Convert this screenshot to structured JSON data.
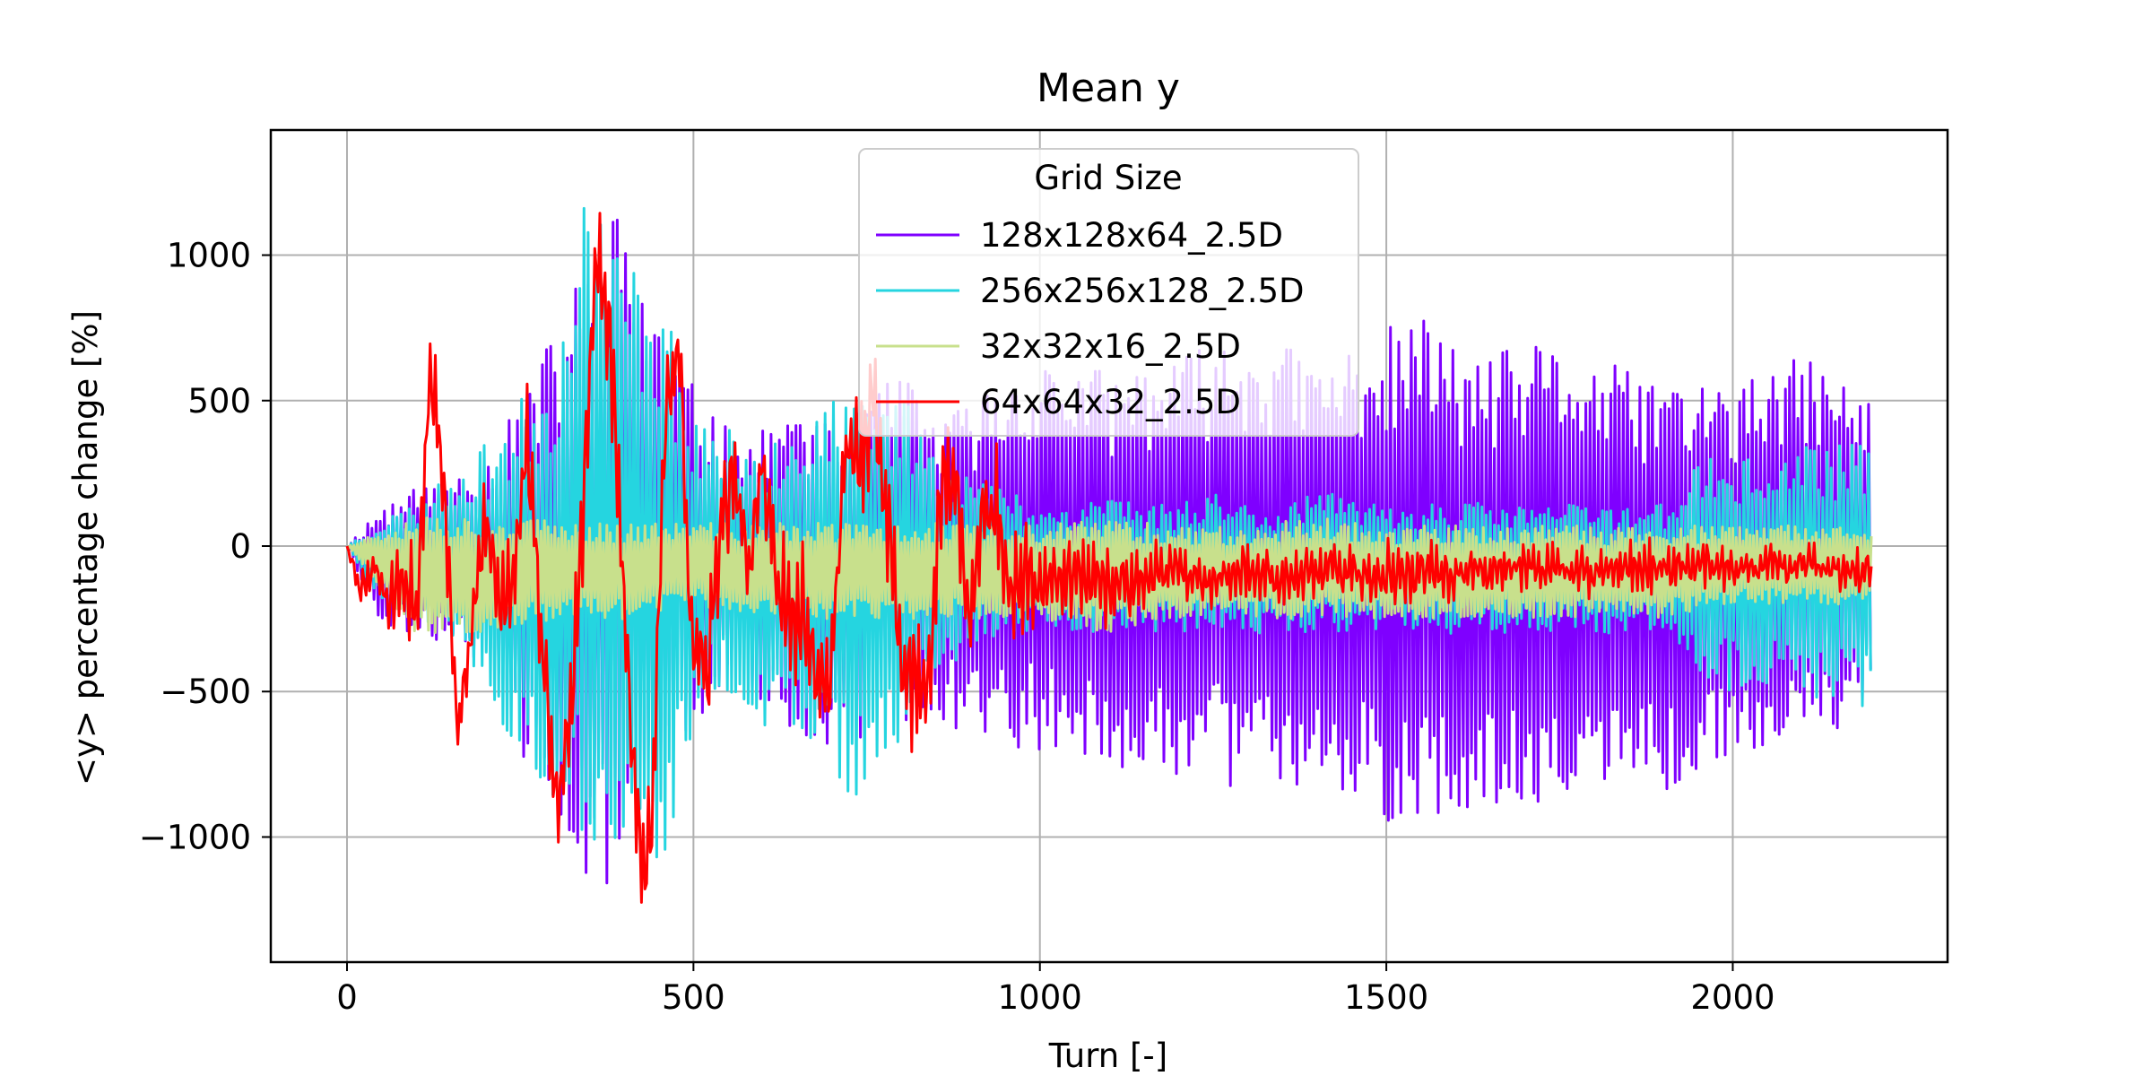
{
  "chart_data": {
    "type": "line",
    "title": "Mean y",
    "xlabel": "Turn [-]",
    "ylabel": "<y> percentage change [%]",
    "xlim": [
      -110,
      2310
    ],
    "ylim": [
      -1430,
      1430
    ],
    "xticks": [
      0,
      500,
      1000,
      1500,
      2000
    ],
    "yticks": [
      -1000,
      -500,
      0,
      500,
      1000
    ],
    "xtick_labels": [
      "0",
      "500",
      "1000",
      "1500",
      "2000"
    ],
    "ytick_labels": [
      "−1000",
      "−500",
      "0",
      "500",
      "1000"
    ],
    "grid": true,
    "legend": {
      "title": "Grid Size",
      "location": "upper center"
    },
    "x_range": [
      0,
      2200
    ],
    "series": [
      {
        "name": "128x128x64_2.5D",
        "color": "#7f00ff",
        "x": [
          0,
          50,
          100,
          150,
          200,
          250,
          300,
          350,
          400,
          450,
          500,
          550,
          600,
          650,
          700,
          750,
          800,
          850,
          900,
          950,
          1000,
          1050,
          1100,
          1150,
          1200,
          1250,
          1300,
          1350,
          1400,
          1450,
          1500,
          1550,
          1600,
          1650,
          1700,
          1750,
          1800,
          1850,
          1900,
          1950,
          2000,
          2050,
          2100,
          2150,
          2200
        ],
        "y_max": [
          0,
          150,
          200,
          250,
          300,
          500,
          750,
          1050,
          1200,
          800,
          550,
          400,
          400,
          500,
          400,
          500,
          600,
          450,
          500,
          600,
          650,
          650,
          600,
          650,
          650,
          700,
          750,
          700,
          650,
          700,
          750,
          800,
          700,
          650,
          700,
          700,
          650,
          600,
          600,
          600,
          550,
          600,
          650,
          600,
          500
        ],
        "y_min": [
          0,
          -300,
          -300,
          -350,
          -400,
          -700,
          -1000,
          -1300,
          -1100,
          -800,
          -600,
          -500,
          -600,
          -650,
          -700,
          -650,
          -600,
          -600,
          -650,
          -700,
          -700,
          -750,
          -750,
          -800,
          -800,
          -800,
          -850,
          -850,
          -850,
          -850,
          -950,
          -950,
          -900,
          -900,
          -900,
          -850,
          -850,
          -850,
          -850,
          -800,
          -750,
          -700,
          -700,
          -650,
          -550
        ]
      },
      {
        "name": "256x256x128_2.5D",
        "color": "#25d5e0",
        "x": [
          0,
          50,
          100,
          150,
          200,
          250,
          300,
          350,
          400,
          450,
          500,
          550,
          600,
          650,
          700,
          750,
          800,
          850,
          900,
          950,
          1000,
          1050,
          1100,
          1150,
          1200,
          1250,
          1300,
          1350,
          1400,
          1450,
          1500,
          1550,
          1600,
          1650,
          1700,
          1750,
          1800,
          1850,
          1900,
          1950,
          2000,
          2050,
          2100,
          2150,
          2200
        ],
        "y_max": [
          0,
          100,
          150,
          250,
          350,
          500,
          650,
          1300,
          1000,
          950,
          450,
          400,
          400,
          450,
          500,
          500,
          550,
          350,
          250,
          200,
          150,
          150,
          200,
          150,
          150,
          200,
          150,
          150,
          200,
          150,
          150,
          150,
          150,
          150,
          150,
          150,
          150,
          150,
          150,
          300,
          300,
          300,
          350,
          350,
          350
        ],
        "y_min": [
          0,
          -200,
          -250,
          -300,
          -550,
          -700,
          -900,
          -1100,
          -1000,
          -1250,
          -600,
          -500,
          -650,
          -700,
          -800,
          -900,
          -700,
          -450,
          -350,
          -300,
          -300,
          -300,
          -300,
          -300,
          -300,
          -300,
          -300,
          -300,
          -300,
          -300,
          -300,
          -300,
          -300,
          -300,
          -300,
          -300,
          -300,
          -300,
          -300,
          -450,
          -500,
          -500,
          -500,
          -550,
          -550
        ]
      },
      {
        "name": "32x32x16_2.5D",
        "color": "#c8e08c",
        "x": [
          0,
          100,
          200,
          300,
          400,
          500,
          600,
          700,
          800,
          900,
          1000,
          1100,
          1200,
          1300,
          1400,
          1500,
          1600,
          1700,
          1800,
          1900,
          2000,
          2100,
          2200
        ],
        "y_max": [
          0,
          120,
          100,
          90,
          80,
          80,
          80,
          80,
          80,
          80,
          70,
          100,
          70,
          70,
          100,
          70,
          70,
          70,
          70,
          70,
          70,
          70,
          80
        ],
        "y_min": [
          0,
          -300,
          -300,
          -250,
          -250,
          -200,
          -250,
          -250,
          -250,
          -250,
          -250,
          -300,
          -250,
          -250,
          -250,
          -250,
          -250,
          -250,
          -250,
          -250,
          -200,
          -200,
          -200
        ]
      },
      {
        "name": "64x64x32_2.5D",
        "color": "#ff0000",
        "x": [
          0,
          20,
          40,
          60,
          80,
          100,
          120,
          140,
          160,
          180,
          200,
          220,
          240,
          260,
          280,
          300,
          320,
          340,
          360,
          380,
          400,
          420,
          440,
          460,
          480,
          500,
          520,
          540,
          560,
          580,
          600,
          620,
          640,
          660,
          680,
          700,
          720,
          740,
          760,
          780,
          800,
          820,
          840,
          860,
          880,
          900,
          920,
          940,
          960,
          980,
          1000,
          1050,
          1100,
          1150,
          1200,
          1250,
          1300,
          1350,
          1400,
          1450,
          1500,
          1550,
          1600,
          1650,
          1700,
          1750,
          1800,
          1850,
          1900,
          1950,
          2000,
          2050,
          2100,
          2150,
          2200
        ],
        "y": [
          0,
          -150,
          -50,
          -200,
          -100,
          -200,
          640,
          200,
          -650,
          -300,
          100,
          -200,
          -100,
          400,
          -300,
          -850,
          -700,
          100,
          1000,
          700,
          -200,
          -1050,
          -1000,
          550,
          600,
          -400,
          -450,
          100,
          250,
          -100,
          300,
          -100,
          -300,
          -200,
          -500,
          -400,
          350,
          300,
          500,
          100,
          -350,
          -500,
          -450,
          300,
          150,
          -300,
          150,
          100,
          -200,
          -100,
          -150,
          -100,
          -150,
          -100,
          -80,
          -120,
          -80,
          -100,
          -80,
          -90,
          -100,
          -80,
          -100,
          -80,
          -60,
          -80,
          -90,
          -70,
          -80,
          -60,
          -80,
          -70,
          -60,
          -80,
          -100
        ],
        "oscillation_amplitude": [
          0,
          80,
          120,
          150,
          200,
          250,
          250,
          200,
          200,
          200,
          200,
          200,
          200,
          200,
          200,
          250,
          250,
          250,
          250,
          250,
          250,
          250,
          250,
          250,
          250,
          250,
          250,
          250,
          250,
          250,
          250,
          250,
          250,
          250,
          250,
          250,
          250,
          250,
          250,
          250,
          250,
          250,
          250,
          250,
          250,
          250,
          250,
          250,
          250,
          250,
          180,
          150,
          180,
          130,
          120,
          120,
          110,
          110,
          120,
          110,
          150,
          130,
          110,
          100,
          100,
          90,
          110,
          120,
          100,
          90,
          90,
          90,
          90,
          100,
          120
        ]
      }
    ]
  }
}
